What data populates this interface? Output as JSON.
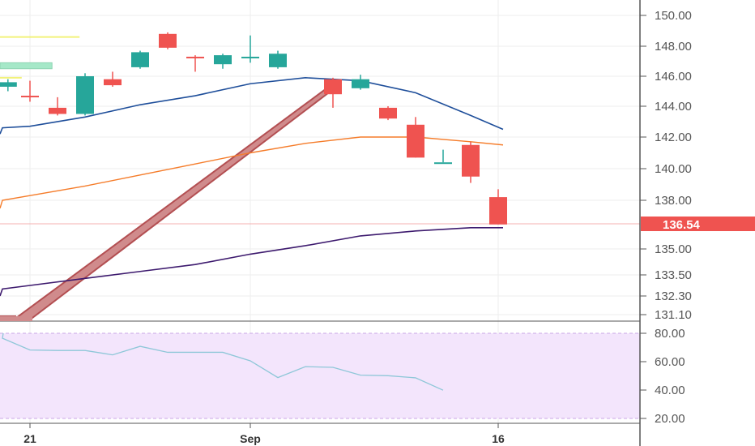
{
  "colors": {
    "up": "#26a69a",
    "down": "#ef5350",
    "ma_fast": "#1e4e9a",
    "ma_mid": "#f57c2a",
    "ma_slow": "#3d1a6e",
    "rsi_line": "#8ec7d8",
    "rsi_band": "#f3e5fc",
    "arrow": "#b34f52",
    "arrow_fill": "#d08b8c",
    "highlight_green": "#a5e8c8",
    "highlight_yellow": "#f2f27a",
    "grid": "#eeeeee",
    "axis": "#555555"
  },
  "chart_data": [
    {
      "type": "candlestick",
      "price_tag": "136.54",
      "x_ticks": [
        {
          "day": 4,
          "label": "21"
        },
        {
          "day": 12,
          "label": "Sep"
        },
        {
          "day": 21,
          "label": "16"
        }
      ],
      "y_ticks": [
        "150.00",
        "148.00",
        "146.00",
        "144.00",
        "142.00",
        "140.00",
        "138.00",
        "135.00",
        "133.50",
        "132.30",
        "131.10"
      ],
      "candles": [
        {
          "day": 3.2,
          "open": 145.3,
          "close": 145.6,
          "high": 145.8,
          "low": 145.0
        },
        {
          "day": 4.0,
          "open": 144.7,
          "close": 144.6,
          "high": 145.7,
          "low": 144.3
        },
        {
          "day": 5.0,
          "open": 143.9,
          "close": 143.5,
          "high": 144.6,
          "low": 143.4
        },
        {
          "day": 6.0,
          "open": 143.5,
          "close": 146.0,
          "high": 146.2,
          "low": 143.4
        },
        {
          "day": 7.0,
          "open": 145.8,
          "close": 145.4,
          "high": 146.3,
          "low": 145.3
        },
        {
          "day": 8.0,
          "open": 146.6,
          "close": 147.6,
          "high": 147.7,
          "low": 146.5
        },
        {
          "day": 9.0,
          "open": 148.8,
          "close": 147.9,
          "high": 148.9,
          "low": 147.8
        },
        {
          "day": 10.0,
          "open": 147.3,
          "close": 147.2,
          "high": 147.4,
          "low": 146.3
        },
        {
          "day": 11.0,
          "open": 146.8,
          "close": 147.4,
          "high": 147.5,
          "low": 146.5
        },
        {
          "day": 12.0,
          "open": 147.2,
          "close": 147.3,
          "high": 148.7,
          "low": 146.9
        },
        {
          "day": 13.0,
          "open": 146.6,
          "close": 147.5,
          "high": 147.7,
          "low": 146.5
        },
        {
          "day": 15.0,
          "open": 145.8,
          "close": 144.8,
          "high": 145.9,
          "low": 143.9
        },
        {
          "day": 16.0,
          "open": 145.2,
          "close": 145.8,
          "high": 146.1,
          "low": 145.1
        },
        {
          "day": 17.0,
          "open": 143.9,
          "close": 143.2,
          "high": 144.0,
          "low": 143.1
        },
        {
          "day": 18.0,
          "open": 142.8,
          "close": 140.7,
          "high": 143.3,
          "low": 140.7
        },
        {
          "day": 19.0,
          "open": 140.4,
          "close": 140.4,
          "high": 141.2,
          "low": 140.4
        },
        {
          "day": 20.0,
          "open": 141.5,
          "close": 139.5,
          "high": 141.7,
          "low": 139.1
        },
        {
          "day": 21.0,
          "open": 138.2,
          "close": 136.5,
          "high": 138.7,
          "low": 136.5
        }
      ],
      "ma_fast": [
        [
          2,
          142.2
        ],
        [
          3,
          142.6
        ],
        [
          4,
          142.7
        ],
        [
          6,
          143.3
        ],
        [
          8,
          144.1
        ],
        [
          10,
          144.7
        ],
        [
          12,
          145.5
        ],
        [
          14,
          145.9
        ],
        [
          16,
          145.7
        ],
        [
          18,
          144.9
        ],
        [
          20,
          143.4
        ],
        [
          21,
          142.5
        ]
      ],
      "ma_mid": [
        [
          2,
          137.5
        ],
        [
          3,
          138.0
        ],
        [
          4,
          138.3
        ],
        [
          6,
          138.9
        ],
        [
          8,
          139.6
        ],
        [
          10,
          140.3
        ],
        [
          12,
          141.0
        ],
        [
          14,
          141.6
        ],
        [
          16,
          142.0
        ],
        [
          18,
          142.0
        ],
        [
          20,
          141.7
        ],
        [
          21,
          141.5
        ]
      ],
      "ma_slow": [
        [
          2,
          132.3
        ],
        [
          3,
          132.7
        ],
        [
          4,
          132.9
        ],
        [
          6,
          133.3
        ],
        [
          8,
          133.7
        ],
        [
          10,
          134.1
        ],
        [
          12,
          134.7
        ],
        [
          14,
          135.2
        ],
        [
          16,
          135.8
        ],
        [
          18,
          136.1
        ],
        [
          20,
          136.3
        ],
        [
          21,
          136.3
        ]
      ],
      "arrow_line": [
        [
          3.5,
          131.1
        ],
        [
          14.9,
          145.5
        ]
      ],
      "highlights": [
        {
          "color": "yellow",
          "day_start": 2,
          "day_end": 5.8,
          "price": 148.6
        },
        {
          "color": "green",
          "day_start": 2,
          "day_end": 4.8,
          "price_low": 146.5,
          "price_high": 146.9
        },
        {
          "color": "yellow",
          "day_start": 2,
          "day_end": 3.7,
          "price": 145.9
        }
      ]
    },
    {
      "type": "line",
      "y_ticks": [
        "80.00",
        "60.00",
        "40.00",
        "20.00"
      ],
      "ylim": [
        20,
        80
      ],
      "values": [
        [
          2.0,
          80.0
        ],
        [
          3.0,
          76.5
        ],
        [
          4.0,
          68.2
        ],
        [
          5.0,
          67.9
        ],
        [
          6.0,
          67.9
        ],
        [
          7.0,
          64.8
        ],
        [
          8.0,
          70.8
        ],
        [
          9.0,
          66.6
        ],
        [
          10.0,
          66.6
        ],
        [
          11.0,
          66.6
        ],
        [
          12.0,
          60.6
        ],
        [
          13.0,
          48.8
        ],
        [
          14.0,
          56.5
        ],
        [
          15.0,
          56.0
        ],
        [
          16.0,
          50.5
        ],
        [
          17.0,
          50.1
        ],
        [
          18.0,
          48.6
        ],
        [
          19.0,
          39.9
        ]
      ]
    }
  ]
}
